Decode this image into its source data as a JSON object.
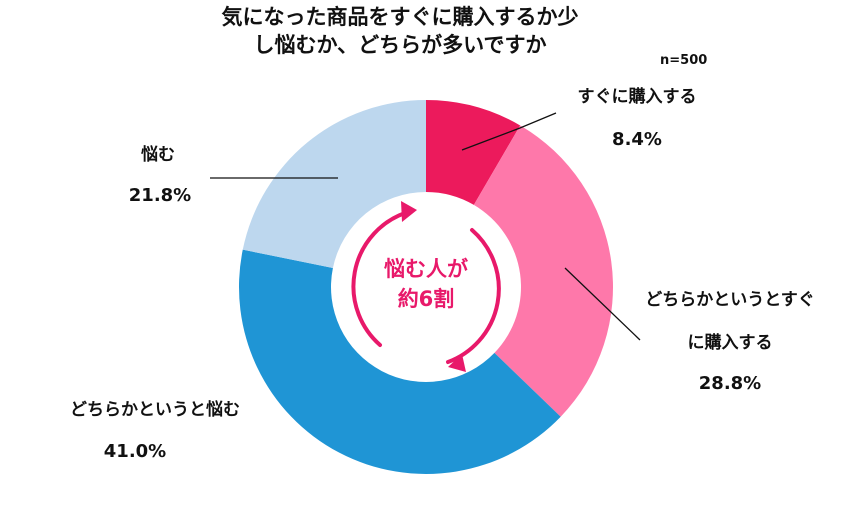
{
  "chart_data": {
    "type": "donut",
    "title": "気になった商品をすぐに購入するか少し悩むか、どちらが多いですか",
    "subtitle": "n=500",
    "annotation": "悩む人が約6割",
    "categories": [
      "すぐに購入する",
      "どちらかというとすぐに購入する",
      "どちらかというと悩む",
      "悩む"
    ],
    "values": [
      8.4,
      28.8,
      41.0,
      21.8
    ],
    "value_labels": [
      "8.4%",
      "28.8%",
      "41.0%",
      "21.8%"
    ],
    "colors": [
      "#ec1a5c",
      "#fe78aa",
      "#1f95d5",
      "#bdd7ee"
    ]
  }
}
